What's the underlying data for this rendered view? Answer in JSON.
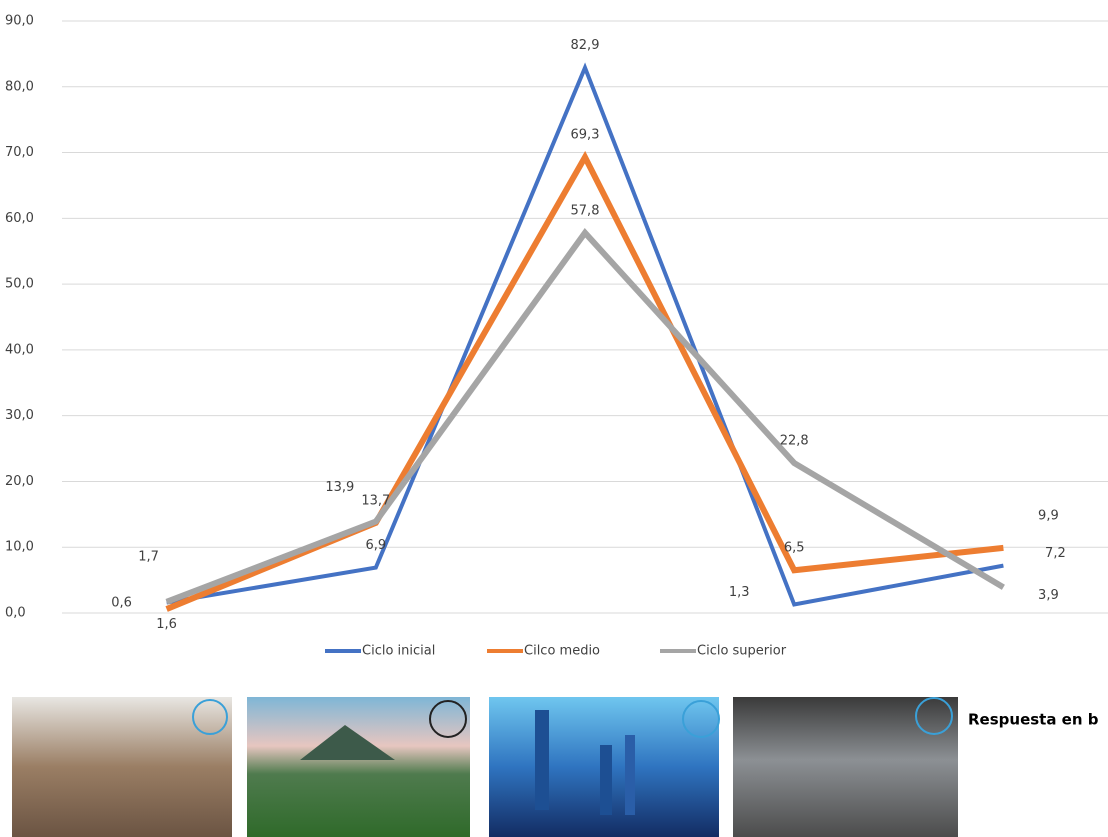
{
  "chart_data": {
    "type": "line",
    "categories": [
      null,
      null,
      null,
      null,
      null
    ],
    "series": [
      {
        "name": "Ciclo inicial",
        "color": "#4472c4",
        "values": [
          1.6,
          6.9,
          82.9,
          1.3,
          7.2
        ],
        "value_labels": [
          "1,6",
          "6,9",
          "82,9",
          "1,3",
          "7,2"
        ]
      },
      {
        "name": "Cilco medio",
        "color": "#ed7d31",
        "values": [
          0.6,
          13.7,
          69.3,
          6.5,
          9.9
        ],
        "value_labels": [
          "0,6",
          "13,7",
          "69,3",
          "6,5",
          "9,9"
        ]
      },
      {
        "name": "Ciclo superior",
        "color": "#a5a5a5",
        "values": [
          1.7,
          13.9,
          57.8,
          22.8,
          3.9
        ],
        "value_labels": [
          "1,7",
          "13,9",
          "57,8",
          "22,8",
          "3,9"
        ]
      }
    ],
    "ylim": [
      0,
      90
    ],
    "yticks": [
      {
        "value": 0,
        "label": "0,0"
      },
      {
        "value": 10,
        "label": "10,0"
      },
      {
        "value": 20,
        "label": "20,0"
      },
      {
        "value": 30,
        "label": "30,0"
      },
      {
        "value": 40,
        "label": "40,0"
      },
      {
        "value": 50,
        "label": "50,0"
      },
      {
        "value": 60,
        "label": "60,0"
      },
      {
        "value": 70,
        "label": "70,0"
      },
      {
        "value": 80,
        "label": "80,0"
      },
      {
        "value": 90,
        "label": "90,0"
      }
    ],
    "grid": true,
    "legend": "bottom"
  },
  "caption": "Respuesta en b"
}
